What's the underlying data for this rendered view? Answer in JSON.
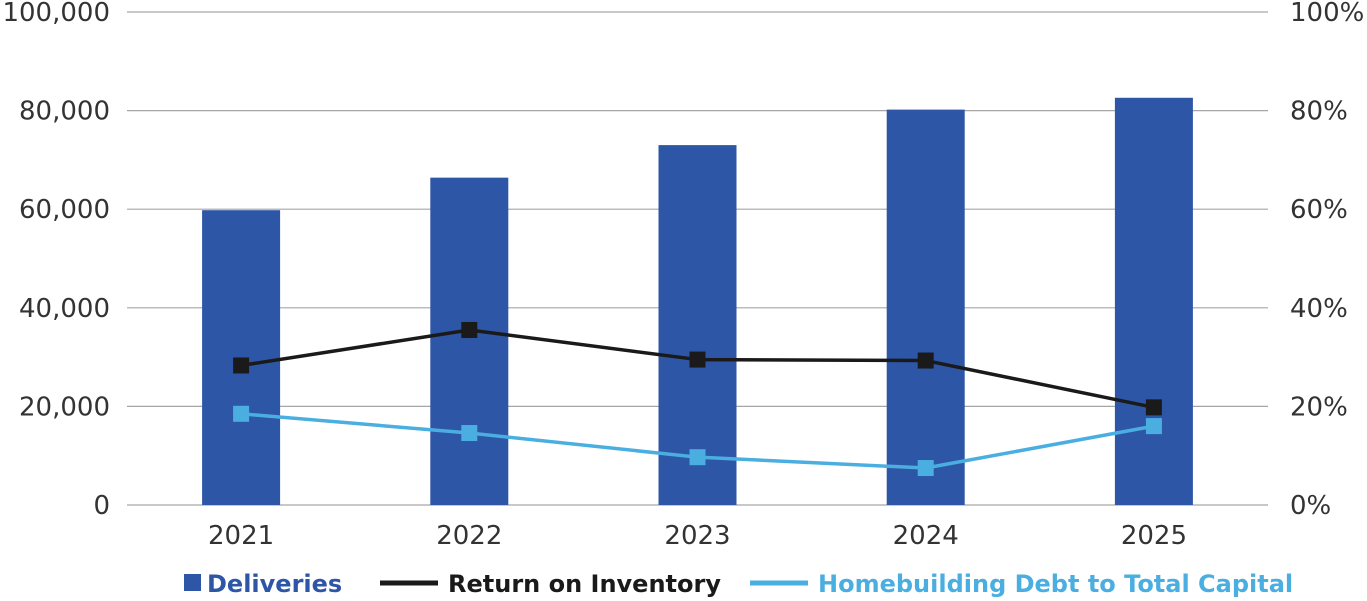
{
  "chart_data": {
    "type": "bar",
    "categories": [
      "2021",
      "2022",
      "2023",
      "2024",
      "2025"
    ],
    "title": "",
    "xlabel": "",
    "ylabel": "",
    "ylim": [
      0,
      100000
    ],
    "y2lim": [
      0,
      100
    ],
    "y_ticks": [
      "0",
      "20,000",
      "40,000",
      "60,000",
      "80,000",
      "100,000"
    ],
    "y2_ticks": [
      "0%",
      "20%",
      "40%",
      "60%",
      "80%",
      "100%"
    ],
    "grid": true,
    "legend_position": "bottom",
    "series": [
      {
        "name": "Deliveries",
        "type": "bar",
        "axis": "left",
        "color": "#2e56a6",
        "values": [
          59800,
          66400,
          73000,
          80200,
          82600
        ]
      },
      {
        "name": "Return on Inventory",
        "type": "line",
        "axis": "right",
        "color": "#1a1a1a",
        "values": [
          28.3,
          35.5,
          29.5,
          29.3,
          19.8
        ]
      },
      {
        "name": "Homebuilding Debt to Total Capital",
        "type": "line",
        "axis": "right",
        "color": "#4aafe0",
        "values": [
          18.5,
          14.6,
          9.7,
          7.5,
          16.0
        ]
      }
    ]
  }
}
